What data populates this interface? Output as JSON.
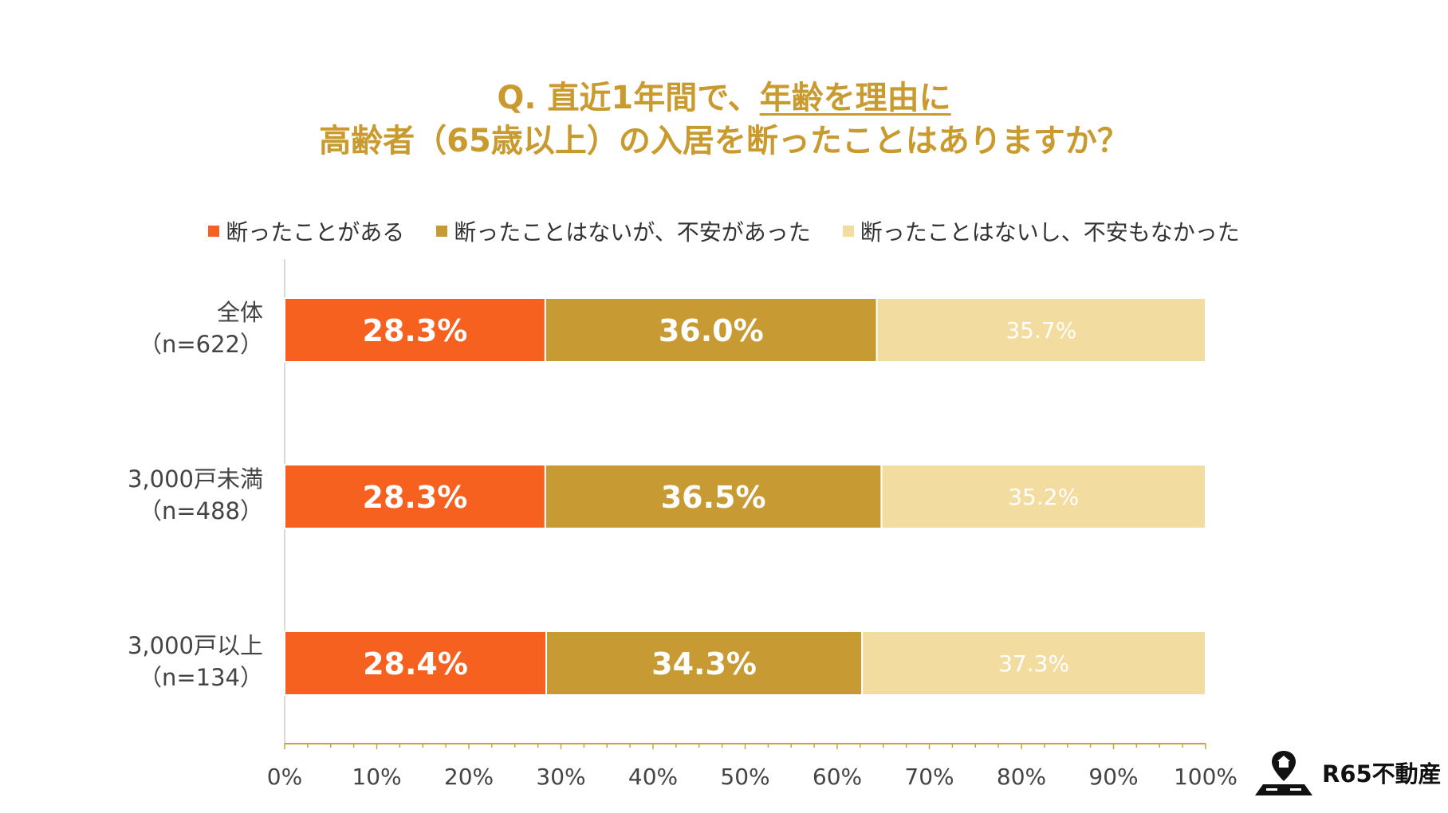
{
  "chart_data": {
    "type": "bar",
    "orientation": "horizontal",
    "stacked": true,
    "title": {
      "prefix": "Q. 直近1年間で、",
      "underlined": "年齢を理由に",
      "line2": "高齢者（65歳以上）の入居を断ったことはありますか？"
    },
    "categories": [
      {
        "name": "全体",
        "n": "（n=622）"
      },
      {
        "name": "3,000戸未満",
        "n": "（n=488）"
      },
      {
        "name": "3,000戸以上",
        "n": "（n=134）"
      }
    ],
    "series": [
      {
        "name": "断ったことがある",
        "color": "#F7611F",
        "label_color": "#ffffff",
        "bold": true,
        "values": [
          28.3,
          28.3,
          28.4
        ],
        "labels": [
          "28.3%",
          "28.3%",
          "28.4%"
        ]
      },
      {
        "name": "断ったことはないが、不安があった",
        "color": "#C79A33",
        "label_color": "#ffffff",
        "bold": true,
        "values": [
          36.0,
          36.5,
          34.3
        ],
        "labels": [
          "36.0%",
          "36.5%",
          "34.3%"
        ]
      },
      {
        "name": "断ったことはないし、不安もなかった",
        "color": "#F2DCA0",
        "label_color": "#ffffff",
        "bold": false,
        "values": [
          35.7,
          35.2,
          37.3
        ],
        "labels": [
          "35.7%",
          "35.2%",
          "37.3%"
        ]
      }
    ],
    "xlim": [
      0,
      100
    ],
    "xticks": [
      "0%",
      "10%",
      "20%",
      "30%",
      "40%",
      "50%",
      "60%",
      "70%",
      "80%",
      "90%",
      "100%"
    ],
    "legend_position": "top",
    "grid": false
  },
  "brand": {
    "name": "R65不動産"
  },
  "colors": {
    "title": "#C99A2E",
    "axis": "#C8A440"
  }
}
